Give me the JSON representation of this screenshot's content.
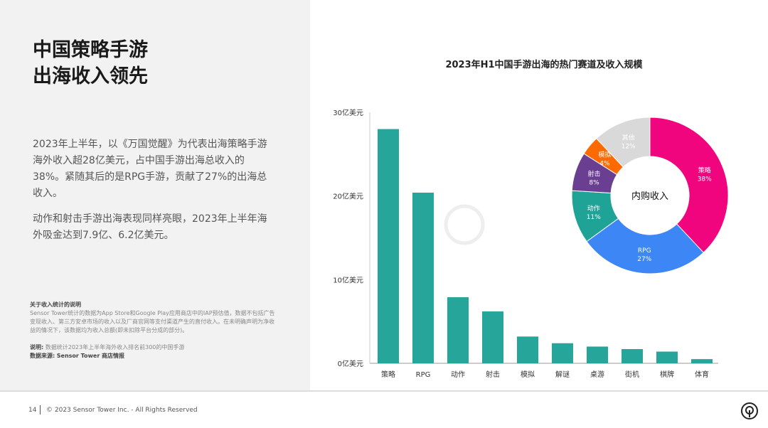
{
  "heading": [
    "中国策略手游",
    "出海收入领先"
  ],
  "paragraphs": [
    "2023年上半年，以《万国觉醒》为代表出海策略手游海外收入超28亿美元，占中国手游出海总收入的38%。紧随其后的是RPG手游，贡献了27%的出海总收入。",
    "动作和射击手游出海表现同样亮眼，2023年上半年海外吸金达到7.9亿、6.2亿美元。"
  ],
  "notes": {
    "title": "关于收入统计的说明",
    "body": "Sensor Tower统计的数据为App Store和Google Play应用商店中的IAP预估值，数据不包括广告变现收入、第三方安卓市场的收入以及厂商官网等支付渠道产生的直付收入。在未明确声明为净收益的情况下，该数据均为收入总额(即未扣除平台分成的部分)。",
    "desc_label": "说明:",
    "desc": "数据统计2023年上半年海外收入排名前300的中国手游",
    "source_label": "数据来源:",
    "source": "Sensor Tower 商店情报"
  },
  "footer": {
    "page": "14",
    "copyright": "© 2023 Sensor Tower Inc. - All Rights Reserved"
  },
  "watermark": "Sensor Tower",
  "chart_data": [
    {
      "type": "bar",
      "title": "2023年H1中国手游出海的热门赛道及收入规模",
      "categories": [
        "策略",
        "RPG",
        "动作",
        "射击",
        "模拟",
        "解谜",
        "桌游",
        "街机",
        "棋牌",
        "体育"
      ],
      "values": [
        28,
        20.4,
        7.9,
        6.2,
        3.2,
        2.4,
        2.0,
        1.7,
        1.4,
        0.5
      ],
      "unit": "亿美元",
      "ylim": [
        0,
        30
      ],
      "yticks": [
        "0亿美元",
        "10亿美元",
        "20亿美元",
        "30亿美元"
      ],
      "yticks_values": [
        0,
        10,
        20,
        30
      ],
      "color": "#26a69a",
      "grid": false
    },
    {
      "type": "pie",
      "donut": true,
      "center_label": "内购收入",
      "slices": [
        {
          "label": "策略",
          "pct": "38%",
          "value": 38,
          "color": "#f0057f"
        },
        {
          "label": "RPG",
          "pct": "27%",
          "value": 27,
          "color": "#3d86f5"
        },
        {
          "label": "动作",
          "pct": "11%",
          "value": 11,
          "color": "#1fa397"
        },
        {
          "label": "射击",
          "pct": "8%",
          "value": 8,
          "color": "#6a3e91"
        },
        {
          "label": "模拟",
          "pct": "4%",
          "value": 4,
          "color": "#ff6a00"
        },
        {
          "label": "其他",
          "pct": "12%",
          "value": 12,
          "color": "#d9d9d9"
        }
      ]
    }
  ]
}
